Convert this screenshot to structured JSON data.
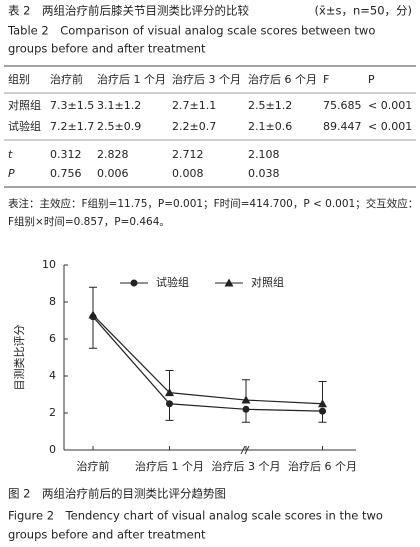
{
  "table_caption": {
    "cn": "表 2　两组治疗前后膝关节目测类比评分的比较",
    "note": "(x̄±s，n=50，分)",
    "en_line1": "Table 2　Comparison of visual analog scale scores between two",
    "en_line2": "groups before and after treatment"
  },
  "table": {
    "header": [
      "组别",
      "治疗前",
      "治疗后 1 个月",
      "治疗后 3 个月",
      "治疗后 6 个月",
      "F",
      "P"
    ],
    "rows": [
      [
        "对照组",
        "7.3±1.5",
        "3.1±1.2",
        "2.7±1.1",
        "2.5±1.2",
        "75.685",
        "< 0.001"
      ],
      [
        "试验组",
        "7.2±1.7",
        "2.5±0.9",
        "2.2±0.7",
        "2.1±0.6",
        "89.447",
        "< 0.001"
      ]
    ],
    "stat_rows": [
      [
        "t",
        "0.312",
        "2.828",
        "2.712",
        "2.108"
      ],
      [
        "P",
        "0.756",
        "0.006",
        "0.008",
        "0.038"
      ]
    ]
  },
  "table_note": {
    "line1": "表注：主效应：F组别=11.75，P=0.001；F时间=414.700，P < 0.001；交互效应：",
    "line2": "F组别×时间=0.857，P=0.464。"
  },
  "chart_data": {
    "type": "line",
    "y_label": "目测类比评分",
    "categories": [
      "治疗前",
      "治疗后 1 个月",
      "治疗后 3 个月",
      "治疗后 6 个月"
    ],
    "series": [
      {
        "name": "试验组",
        "color": "#222222",
        "marker": "circle",
        "error_direction": "down",
        "values": [
          7.2,
          2.5,
          2.2,
          2.1
        ],
        "errors": [
          1.7,
          0.9,
          0.7,
          0.6
        ]
      },
      {
        "name": "对照组",
        "color": "#222222",
        "marker": "triangle",
        "error_direction": "up",
        "values": [
          7.3,
          3.1,
          2.7,
          2.5
        ],
        "errors": [
          1.5,
          1.2,
          1.1,
          1.2
        ]
      }
    ],
    "ylim": [
      0,
      10
    ],
    "yticks": [
      0,
      2,
      4,
      6,
      8,
      10
    ],
    "grid": false
  },
  "figure_caption": {
    "cn": "图 2　两组治疗前后的目测类比评分趋势图",
    "en_line1": "Figure 2　Tendency chart of visual analog scale scores in the two",
    "en_line2": "groups before and after treatment"
  }
}
